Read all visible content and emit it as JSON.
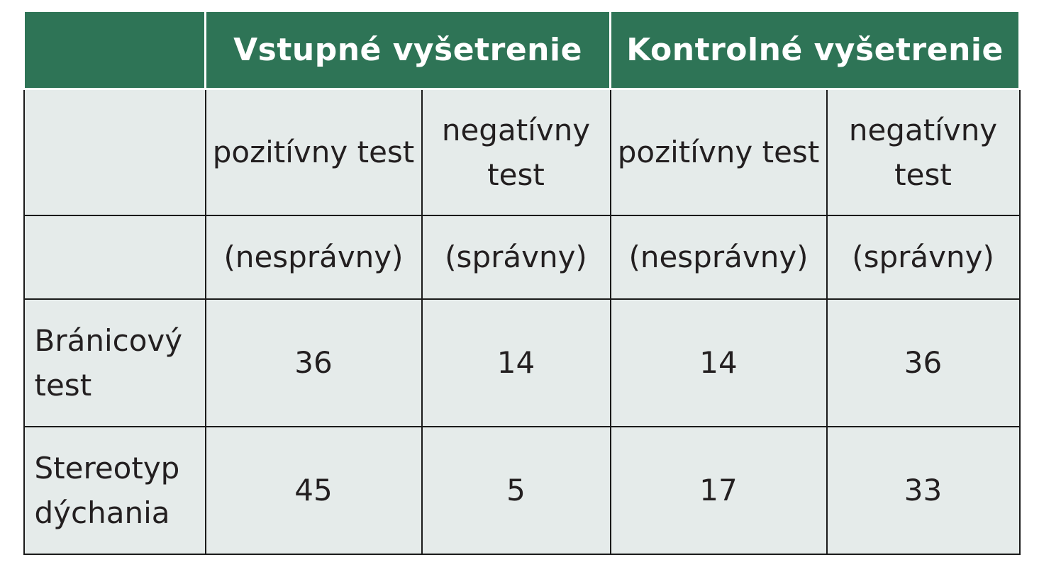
{
  "table": {
    "header": {
      "empty": "",
      "group1": "Vstupné vyšetrenie",
      "group2": "Kontrolné vyšetrenie"
    },
    "subheader": {
      "empty": "",
      "cols": [
        "pozitívny test",
        "negatívny test",
        "pozitívny test",
        "negatívny test"
      ]
    },
    "subheader2": {
      "empty": "",
      "cols": [
        "(nesprávny)",
        "(správny)",
        "(nesprávny)",
        "(správny)"
      ]
    },
    "rows": [
      {
        "label": "Bránicový test",
        "values": [
          "36",
          "14",
          "14",
          "36"
        ]
      },
      {
        "label": "Stereotyp dýchania",
        "values": [
          "45",
          "5",
          "17",
          "33"
        ]
      }
    ]
  }
}
